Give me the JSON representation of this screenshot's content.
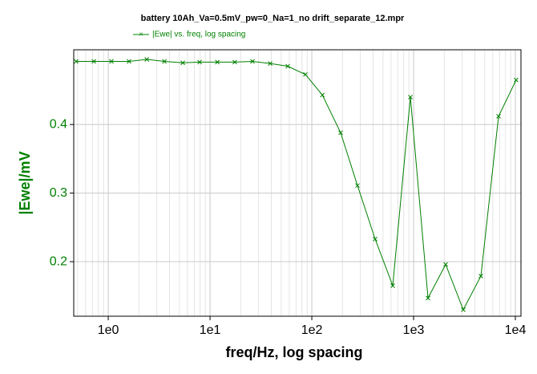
{
  "chart_data": {
    "type": "line",
    "title": "battery 10Ah_Va=0.5mV_pw=0_Na=1_no drift_separate_12.mpr",
    "xlabel": "freq/Hz, log spacing",
    "ylabel": "|Ewe|/mV",
    "xscale": "log",
    "grid": true,
    "xlim": [
      0.458,
      11350
    ],
    "ylim": [
      0.1205,
      0.509
    ],
    "xticks": [
      {
        "value": 1,
        "label": "1e0"
      },
      {
        "value": 10,
        "label": "1e1"
      },
      {
        "value": 100,
        "label": "1e2"
      },
      {
        "value": 1000,
        "label": "1e3"
      },
      {
        "value": 10000,
        "label": "1e4"
      }
    ],
    "yticks": [
      0.2,
      0.3,
      0.4
    ],
    "series": [
      {
        "name": "|Ewe| vs. freq, log spacing",
        "color": "#008000",
        "x": [
          0.484,
          0.722,
          1.075,
          1.6,
          2.39,
          3.56,
          5.4,
          7.9,
          11.8,
          17.5,
          26.1,
          39.0,
          58.0,
          86.5,
          127,
          192,
          281,
          419,
          624,
          930,
          1386,
          2065,
          3077,
          4585,
          6834,
          10180
        ],
        "values": [
          0.492,
          0.492,
          0.492,
          0.492,
          0.495,
          0.492,
          0.49,
          0.491,
          0.491,
          0.491,
          0.492,
          0.489,
          0.485,
          0.473,
          0.443,
          0.388,
          0.311,
          0.233,
          0.165,
          0.44,
          0.147,
          0.196,
          0.13,
          0.179,
          0.412,
          0.465
        ]
      }
    ]
  }
}
